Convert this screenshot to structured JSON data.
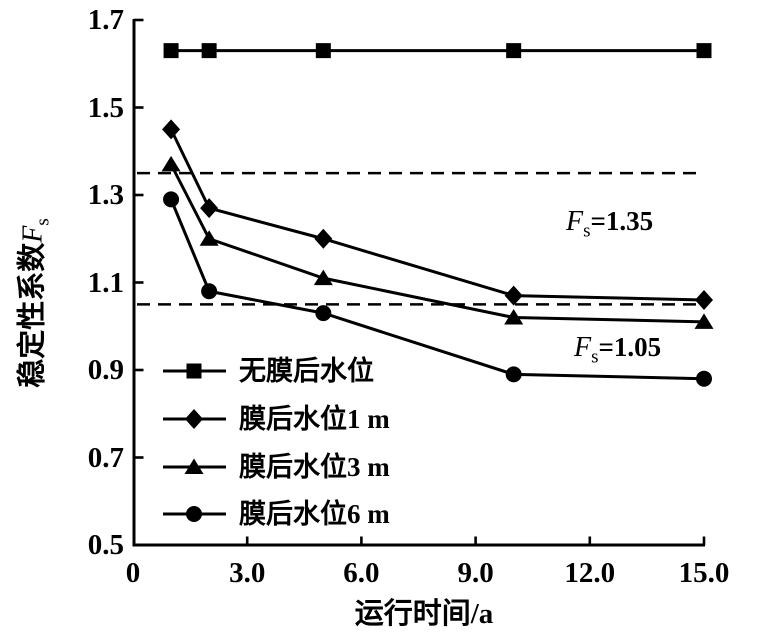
{
  "chart_data": {
    "type": "line",
    "title": "",
    "xlabel": "运行时间/a",
    "ylabel": {
      "text": "稳定性系数",
      "var": "F",
      "var_sub": "s"
    },
    "xlim": [
      0,
      15
    ],
    "ylim": [
      0.5,
      1.7
    ],
    "grid": false,
    "legend_position": "inside-bottom-left",
    "x": [
      1,
      2,
      5,
      10,
      15
    ],
    "series": [
      {
        "name": "无膜后水位",
        "marker": "square",
        "values": [
          1.63,
          1.63,
          1.63,
          1.63,
          1.63
        ]
      },
      {
        "name": "膜后水位1 m",
        "marker": "diamond",
        "values": [
          1.45,
          1.27,
          1.2,
          1.07,
          1.06
        ]
      },
      {
        "name": "膜后水位3 m",
        "marker": "triangle",
        "values": [
          1.37,
          1.2,
          1.11,
          1.02,
          1.01
        ]
      },
      {
        "name": "膜后水位6 m",
        "marker": "circle",
        "values": [
          1.29,
          1.08,
          1.03,
          0.89,
          0.88
        ]
      }
    ],
    "reference_lines": [
      {
        "value": 1.35,
        "style": "dashed",
        "label": {
          "var": "F",
          "sub": "s",
          "text": "=1.35"
        }
      },
      {
        "value": 1.05,
        "style": "dashed",
        "label": {
          "var": "F",
          "sub": "s",
          "text": "=1.05"
        }
      }
    ],
    "x_ticks": [
      {
        "value": 0,
        "label": "0"
      },
      {
        "value": 3,
        "label": "3.0"
      },
      {
        "value": 6,
        "label": "6.0"
      },
      {
        "value": 9,
        "label": "9.0"
      },
      {
        "value": 12,
        "label": "12.0"
      },
      {
        "value": 15,
        "label": "15.0"
      }
    ],
    "y_ticks": [
      {
        "value": 1.7,
        "label": "1.7"
      },
      {
        "value": 1.5,
        "label": "1.5"
      },
      {
        "value": 1.3,
        "label": "1.3"
      },
      {
        "value": 1.1,
        "label": "1.1"
      },
      {
        "value": 0.9,
        "label": "0.9"
      },
      {
        "value": 0.7,
        "label": "0.7"
      },
      {
        "value": 0.5,
        "label": "0.5"
      }
    ],
    "colors": {
      "foreground": "#000000",
      "background": "#ffffff"
    }
  }
}
